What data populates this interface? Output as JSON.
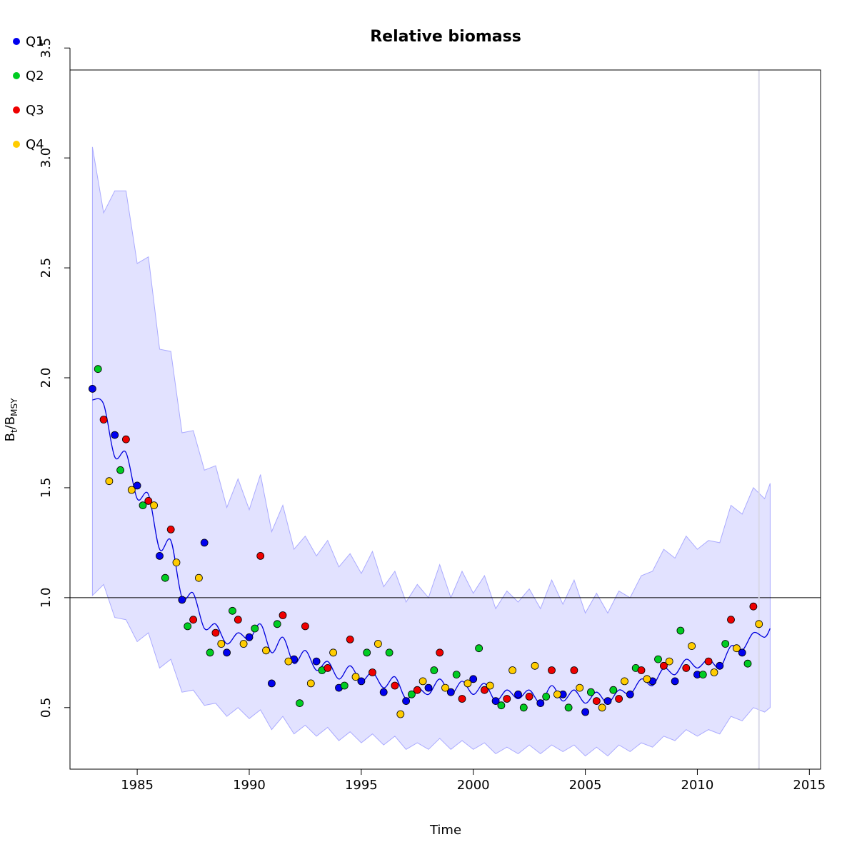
{
  "chart_data": {
    "type": "scatter",
    "title": "Relative biomass",
    "xlabel": "Time",
    "ylabel_main": "B",
    "ylabel_sub1": "t",
    "ylabel_mid": "/B",
    "ylabel_sub2": "MSY",
    "xlim": [
      1982,
      2015.5
    ],
    "ylim": [
      0.22,
      3.4
    ],
    "xticks": [
      1985,
      1990,
      1995,
      2000,
      2005,
      2010,
      2015
    ],
    "yticks": [
      0.5,
      1.0,
      1.5,
      2.0,
      2.5,
      3.0,
      3.5
    ],
    "xtick_labels": [
      "1985",
      "1990",
      "1995",
      "2000",
      "2005",
      "2010",
      "2015"
    ],
    "ytick_labels": [
      "0.5",
      "1.0",
      "1.5",
      "2.0",
      "2.5",
      "3.0",
      "3.5"
    ],
    "reference_line_y": 1.0,
    "vertical_line_x": 2012.75,
    "grid": false,
    "legend_position": "top-left",
    "colors": {
      "Q1": "#0000ee",
      "Q2": "#00cc22",
      "Q3": "#ee0000",
      "Q4": "#ffcc00",
      "line": "#0000dd",
      "band_fill": "#e2e2ff",
      "band_stroke": "#aaaaff",
      "vline": "#d8d8e8"
    },
    "series": [
      {
        "name": "Q1",
        "x": [
          1983.0,
          1984.0,
          1985.0,
          1986.0,
          1987.0,
          1988.0,
          1989.0,
          1990.0,
          1991.0,
          1992.0,
          1993.0,
          1994.0,
          1995.0,
          1996.0,
          1997.0,
          1998.0,
          1999.0,
          2000.0,
          2001.0,
          2002.0,
          2003.0,
          2004.0,
          2005.0,
          2006.0,
          2007.0,
          2008.0,
          2009.0,
          2010.0,
          2011.0,
          2012.0
        ],
        "y": [
          1.95,
          1.74,
          1.51,
          1.19,
          0.99,
          1.25,
          0.75,
          0.82,
          0.61,
          0.72,
          0.71,
          0.59,
          0.62,
          0.57,
          0.53,
          0.59,
          0.57,
          0.63,
          0.53,
          0.56,
          0.52,
          0.56,
          0.48,
          0.53,
          0.56,
          0.62,
          0.62,
          0.65,
          0.69,
          0.75
        ]
      },
      {
        "name": "Q2",
        "x": [
          1983.25,
          1984.25,
          1985.25,
          1986.25,
          1987.25,
          1988.25,
          1989.25,
          1990.25,
          1991.25,
          1992.25,
          1993.25,
          1994.25,
          1995.25,
          1996.25,
          1997.25,
          1998.25,
          1999.25,
          2000.25,
          2001.25,
          2002.25,
          2003.25,
          2004.25,
          2005.25,
          2006.25,
          2007.25,
          2008.25,
          2009.25,
          2010.25,
          2011.25,
          2012.25
        ],
        "y": [
          2.04,
          1.58,
          1.42,
          1.09,
          0.87,
          0.75,
          0.94,
          0.86,
          0.88,
          0.52,
          0.67,
          0.6,
          0.75,
          0.75,
          0.56,
          0.67,
          0.65,
          0.77,
          0.51,
          0.5,
          0.55,
          0.5,
          0.57,
          0.58,
          0.68,
          0.72,
          0.85,
          0.65,
          0.79,
          0.7
        ]
      },
      {
        "name": "Q3",
        "x": [
          1983.5,
          1984.5,
          1985.5,
          1986.5,
          1987.5,
          1988.5,
          1989.5,
          1990.5,
          1991.5,
          1992.5,
          1993.5,
          1994.5,
          1995.5,
          1996.5,
          1997.5,
          1998.5,
          1999.5,
          2000.5,
          2001.5,
          2002.5,
          2003.5,
          2004.5,
          2005.5,
          2006.5,
          2007.5,
          2008.5,
          2009.5,
          2010.5,
          2011.5,
          2012.5
        ],
        "y": [
          1.81,
          1.72,
          1.44,
          1.31,
          0.9,
          0.84,
          0.9,
          1.19,
          0.92,
          0.87,
          0.68,
          0.81,
          0.66,
          0.6,
          0.58,
          0.75,
          0.54,
          0.58,
          0.54,
          0.55,
          0.67,
          0.67,
          0.53,
          0.54,
          0.67,
          0.69,
          0.68,
          0.71,
          0.9,
          0.96
        ]
      },
      {
        "name": "Q4",
        "x": [
          1983.75,
          1984.75,
          1985.75,
          1986.75,
          1987.75,
          1988.75,
          1989.75,
          1990.75,
          1991.75,
          1992.75,
          1993.75,
          1994.75,
          1995.75,
          1996.75,
          1997.75,
          1998.75,
          1999.75,
          2000.75,
          2001.75,
          2002.75,
          2003.75,
          2004.75,
          2005.75,
          2006.75,
          2007.75,
          2008.75,
          2009.75,
          2010.75,
          2011.75,
          2012.75
        ],
        "y": [
          1.53,
          1.49,
          1.42,
          1.16,
          1.09,
          0.79,
          0.79,
          0.76,
          0.71,
          0.61,
          0.75,
          0.64,
          0.79,
          0.47,
          0.62,
          0.59,
          0.61,
          0.6,
          0.67,
          0.69,
          0.56,
          0.59,
          0.5,
          0.62,
          0.63,
          0.71,
          0.78,
          0.66,
          0.77,
          0.88
        ]
      }
    ],
    "fit_line": {
      "x": [
        1983.0,
        1983.5,
        1984.0,
        1984.5,
        1985.0,
        1985.5,
        1986.0,
        1986.5,
        1987.0,
        1987.5,
        1988.0,
        1988.5,
        1989.0,
        1989.5,
        1990.0,
        1990.5,
        1991.0,
        1991.5,
        1992.0,
        1992.5,
        1993.0,
        1993.5,
        1994.0,
        1994.5,
        1995.0,
        1995.5,
        1996.0,
        1996.5,
        1997.0,
        1997.5,
        1998.0,
        1998.5,
        1999.0,
        1999.5,
        2000.0,
        2000.5,
        2001.0,
        2001.5,
        2002.0,
        2002.5,
        2003.0,
        2003.5,
        2004.0,
        2004.5,
        2005.0,
        2005.5,
        2006.0,
        2006.5,
        2007.0,
        2007.5,
        2008.0,
        2008.5,
        2009.0,
        2009.5,
        2010.0,
        2010.5,
        2011.0,
        2011.5,
        2012.0,
        2012.5,
        2013.0,
        2013.25
      ],
      "y": [
        1.9,
        1.88,
        1.64,
        1.66,
        1.45,
        1.47,
        1.22,
        1.26,
        1.0,
        1.02,
        0.86,
        0.88,
        0.79,
        0.84,
        0.81,
        0.88,
        0.75,
        0.82,
        0.7,
        0.76,
        0.67,
        0.71,
        0.63,
        0.69,
        0.62,
        0.66,
        0.59,
        0.64,
        0.54,
        0.59,
        0.56,
        0.63,
        0.56,
        0.62,
        0.56,
        0.61,
        0.53,
        0.58,
        0.54,
        0.58,
        0.52,
        0.6,
        0.53,
        0.58,
        0.52,
        0.57,
        0.52,
        0.58,
        0.56,
        0.63,
        0.6,
        0.68,
        0.65,
        0.72,
        0.68,
        0.72,
        0.68,
        0.78,
        0.76,
        0.84,
        0.82,
        0.86
      ]
    },
    "band": {
      "x": [
        1983.0,
        1983.5,
        1984.0,
        1984.5,
        1985.0,
        1985.5,
        1986.0,
        1986.5,
        1987.0,
        1987.5,
        1988.0,
        1988.5,
        1989.0,
        1989.5,
        1990.0,
        1990.5,
        1991.0,
        1991.5,
        1992.0,
        1992.5,
        1993.0,
        1993.5,
        1994.0,
        1994.5,
        1995.0,
        1995.5,
        1996.0,
        1996.5,
        1997.0,
        1997.5,
        1998.0,
        1998.5,
        1999.0,
        1999.5,
        2000.0,
        2000.5,
        2001.0,
        2001.5,
        2002.0,
        2002.5,
        2003.0,
        2003.5,
        2004.0,
        2004.5,
        2005.0,
        2005.5,
        2006.0,
        2006.5,
        2007.0,
        2007.5,
        2008.0,
        2008.5,
        2009.0,
        2009.5,
        2010.0,
        2010.5,
        2011.0,
        2011.5,
        2012.0,
        2012.5,
        2013.0,
        2013.25
      ],
      "upper": [
        3.05,
        2.75,
        2.85,
        2.85,
        2.52,
        2.55,
        2.13,
        2.12,
        1.75,
        1.76,
        1.58,
        1.6,
        1.41,
        1.54,
        1.4,
        1.56,
        1.3,
        1.42,
        1.22,
        1.28,
        1.19,
        1.26,
        1.14,
        1.2,
        1.11,
        1.21,
        1.05,
        1.12,
        0.98,
        1.06,
        1.0,
        1.15,
        1.0,
        1.12,
        1.02,
        1.1,
        0.95,
        1.03,
        0.98,
        1.04,
        0.95,
        1.08,
        0.97,
        1.08,
        0.93,
        1.02,
        0.93,
        1.03,
        1.0,
        1.1,
        1.12,
        1.22,
        1.18,
        1.28,
        1.22,
        1.26,
        1.25,
        1.42,
        1.38,
        1.5,
        1.45,
        1.52
      ],
      "lower": [
        1.01,
        1.06,
        0.91,
        0.9,
        0.8,
        0.84,
        0.68,
        0.72,
        0.57,
        0.58,
        0.51,
        0.52,
        0.46,
        0.5,
        0.45,
        0.49,
        0.4,
        0.46,
        0.38,
        0.42,
        0.37,
        0.41,
        0.35,
        0.39,
        0.34,
        0.38,
        0.33,
        0.37,
        0.31,
        0.34,
        0.31,
        0.36,
        0.31,
        0.35,
        0.31,
        0.34,
        0.29,
        0.32,
        0.29,
        0.33,
        0.29,
        0.33,
        0.3,
        0.33,
        0.28,
        0.32,
        0.28,
        0.33,
        0.3,
        0.34,
        0.32,
        0.37,
        0.35,
        0.4,
        0.37,
        0.4,
        0.38,
        0.46,
        0.44,
        0.5,
        0.48,
        0.5
      ]
    }
  }
}
